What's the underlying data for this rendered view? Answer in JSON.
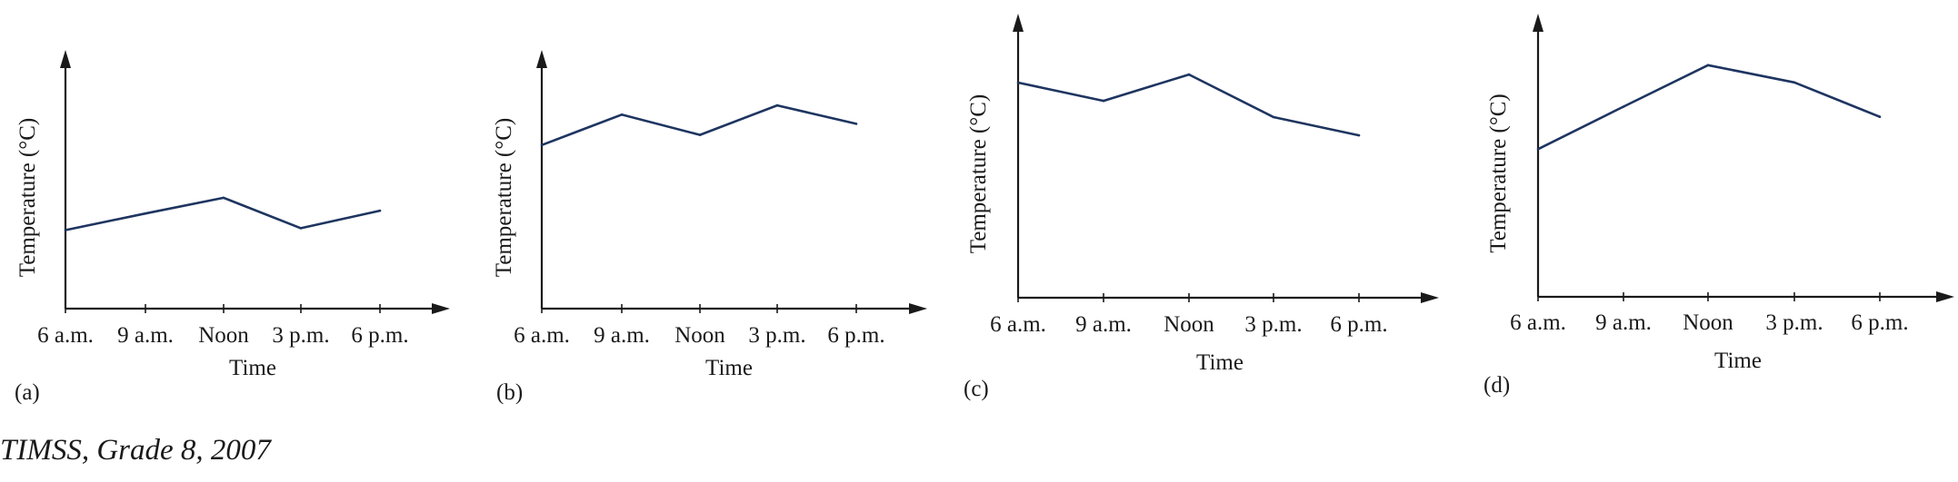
{
  "source": "TIMSS, Grade 8, 2007",
  "colors": {
    "line": "#1e3560",
    "axis": "#1a1a1a"
  },
  "chart_data": [
    {
      "type": "line",
      "panel": "(a)",
      "categories": [
        "6 a.m.",
        "9 a.m.",
        "Noon",
        "3 p.m.",
        "6 p.m."
      ],
      "values": [
        8.5,
        10.3,
        12.0,
        8.7,
        10.6
      ],
      "xlabel": "Time",
      "ylabel": "Temperature (°C)",
      "ylim": [
        0,
        28
      ],
      "grid": false
    },
    {
      "type": "line",
      "panel": "(b)",
      "categories": [
        "6 a.m.",
        "9 a.m.",
        "Noon",
        "3 p.m.",
        "6 p.m."
      ],
      "values": [
        17.7,
        21.0,
        18.8,
        22.0,
        20.0
      ],
      "xlabel": "Time",
      "ylabel": "Temperature (°C)",
      "ylim": [
        0,
        28
      ],
      "grid": false
    },
    {
      "type": "line",
      "panel": "(c)",
      "categories": [
        "6 a.m.",
        "9 a.m.",
        "Noon",
        "3 p.m.",
        "6 p.m."
      ],
      "values": [
        21.2,
        19.4,
        22.0,
        17.8,
        16.0
      ],
      "xlabel": "Time",
      "ylabel": "Temperature (°C)",
      "ylim": [
        0,
        28
      ],
      "grid": false
    },
    {
      "type": "line",
      "panel": "(d)",
      "categories": [
        "6 a.m.",
        "9 a.m.",
        "Noon",
        "3 p.m.",
        "6 p.m."
      ],
      "values": [
        14.6,
        18.8,
        22.9,
        21.2,
        17.8
      ],
      "xlabel": "Time",
      "ylabel": "Temperature (°C)",
      "ylim": [
        0,
        28
      ],
      "grid": false
    }
  ]
}
